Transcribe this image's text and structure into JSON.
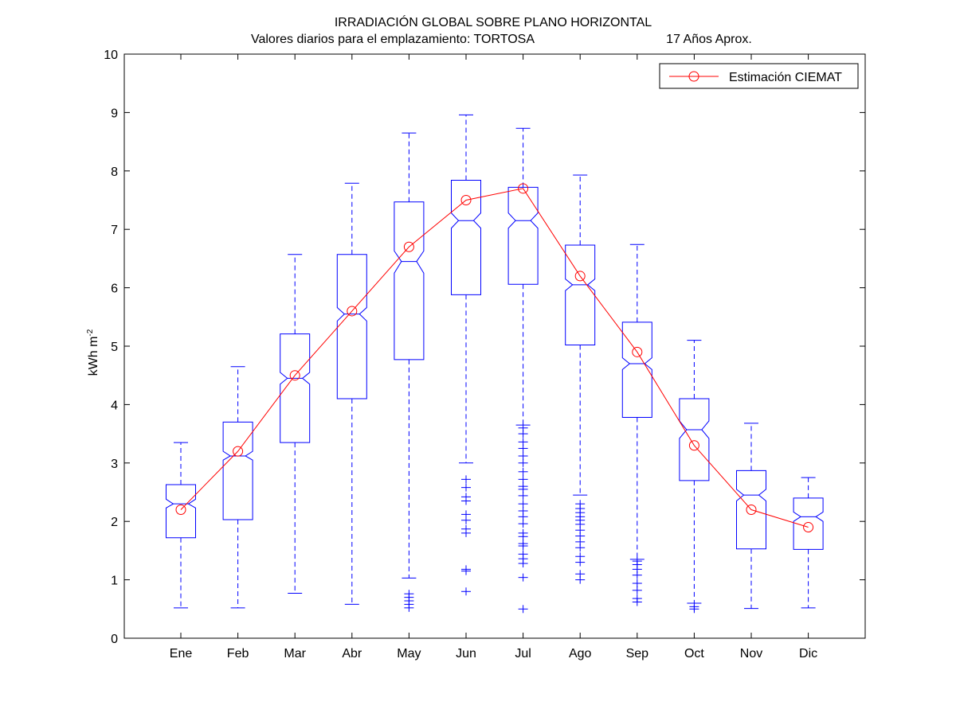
{
  "chart_data": {
    "type": "boxplot",
    "title": "IRRADIACIÓN GLOBAL SOBRE PLANO HORIZONTAL",
    "subtitle_left": "Valores diarios para el emplazamiento:  TORTOSA",
    "subtitle_right": "17 Años Aprox.",
    "ylabel_main": "kWh m",
    "ylabel_sup": "-2",
    "xlabel": "",
    "ylim": [
      0,
      10
    ],
    "yticks": [
      "0",
      "1",
      "2",
      "3",
      "4",
      "5",
      "6",
      "7",
      "8",
      "9",
      "10"
    ],
    "categories": [
      "Ene",
      "Feb",
      "Mar",
      "Abr",
      "May",
      "Jun",
      "Jul",
      "Ago",
      "Sep",
      "Oct",
      "Nov",
      "Dic"
    ],
    "boxes": [
      {
        "whisker_low": 0.52,
        "q1": 1.72,
        "median": 2.3,
        "q3": 2.63,
        "whisker_high": 3.35,
        "notch_low": 2.23,
        "notch_high": 2.38,
        "outliers": []
      },
      {
        "whisker_low": 0.52,
        "q1": 2.03,
        "median": 3.12,
        "q3": 3.7,
        "whisker_high": 4.65,
        "notch_low": 3.05,
        "notch_high": 3.2,
        "outliers": []
      },
      {
        "whisker_low": 0.77,
        "q1": 3.35,
        "median": 4.45,
        "q3": 5.21,
        "whisker_high": 6.57,
        "notch_low": 4.35,
        "notch_high": 4.55,
        "outliers": []
      },
      {
        "whisker_low": 0.58,
        "q1": 4.1,
        "median": 5.55,
        "q3": 6.57,
        "whisker_high": 7.79,
        "notch_low": 5.43,
        "notch_high": 5.66,
        "outliers": []
      },
      {
        "whisker_low": 1.03,
        "q1": 4.77,
        "median": 6.45,
        "q3": 7.47,
        "whisker_high": 8.65,
        "notch_low": 6.25,
        "notch_high": 6.63,
        "outliers": [
          0.52,
          0.58,
          0.64,
          0.7,
          0.76
        ]
      },
      {
        "whisker_low": 3.0,
        "q1": 5.88,
        "median": 7.15,
        "q3": 7.84,
        "whisker_high": 8.96,
        "notch_low": 7.02,
        "notch_high": 7.28,
        "outliers": [
          0.8,
          1.15,
          1.18,
          1.8,
          1.87,
          2.02,
          2.12,
          2.35,
          2.42,
          2.58,
          2.72
        ]
      },
      {
        "whisker_low": 3.65,
        "q1": 6.06,
        "median": 7.15,
        "q3": 7.72,
        "whisker_high": 8.73,
        "notch_low": 7.02,
        "notch_high": 7.28,
        "outliers": [
          0.5,
          1.04,
          1.28,
          1.36,
          1.44,
          1.58,
          1.62,
          1.74,
          1.8,
          1.96,
          2.08,
          2.18,
          2.3,
          2.44,
          2.55,
          2.6,
          2.72,
          2.85,
          3.0,
          3.12,
          3.25,
          3.36,
          3.5,
          3.6
        ]
      },
      {
        "whisker_low": 2.45,
        "q1": 5.02,
        "median": 6.05,
        "q3": 6.73,
        "whisker_high": 7.93,
        "notch_low": 5.95,
        "notch_high": 6.15,
        "outliers": [
          1.0,
          1.1,
          1.3,
          1.4,
          1.55,
          1.65,
          1.75,
          1.85,
          1.95,
          2.02,
          2.08,
          2.15,
          2.22,
          2.3
        ]
      },
      {
        "whisker_low": 1.35,
        "q1": 3.78,
        "median": 4.7,
        "q3": 5.41,
        "whisker_high": 6.74,
        "notch_low": 4.6,
        "notch_high": 4.8,
        "outliers": [
          0.62,
          0.68,
          0.82,
          0.94,
          1.08,
          1.18,
          1.26,
          1.32
        ]
      },
      {
        "whisker_low": 0.6,
        "q1": 2.7,
        "median": 3.57,
        "q3": 4.1,
        "whisker_high": 5.1,
        "notch_low": 3.42,
        "notch_high": 3.72,
        "outliers": [
          0.5,
          0.54
        ]
      },
      {
        "whisker_low": 0.51,
        "q1": 1.53,
        "median": 2.45,
        "q3": 2.87,
        "whisker_high": 3.68,
        "notch_low": 2.35,
        "notch_high": 2.55,
        "outliers": []
      },
      {
        "whisker_low": 0.52,
        "q1": 1.52,
        "median": 2.08,
        "q3": 2.4,
        "whisker_high": 2.75,
        "notch_low": 2.0,
        "notch_high": 2.16,
        "outliers": []
      }
    ],
    "series": [
      {
        "name": "Estimación CIEMAT",
        "values": [
          2.2,
          3.2,
          4.5,
          5.6,
          6.7,
          7.5,
          7.7,
          6.2,
          4.9,
          3.3,
          2.2,
          1.9
        ]
      }
    ],
    "legend_position": "top-right",
    "grid": false,
    "colors": {
      "box": "#0000ff",
      "line": "#ff0000",
      "axis": "#000000"
    }
  }
}
